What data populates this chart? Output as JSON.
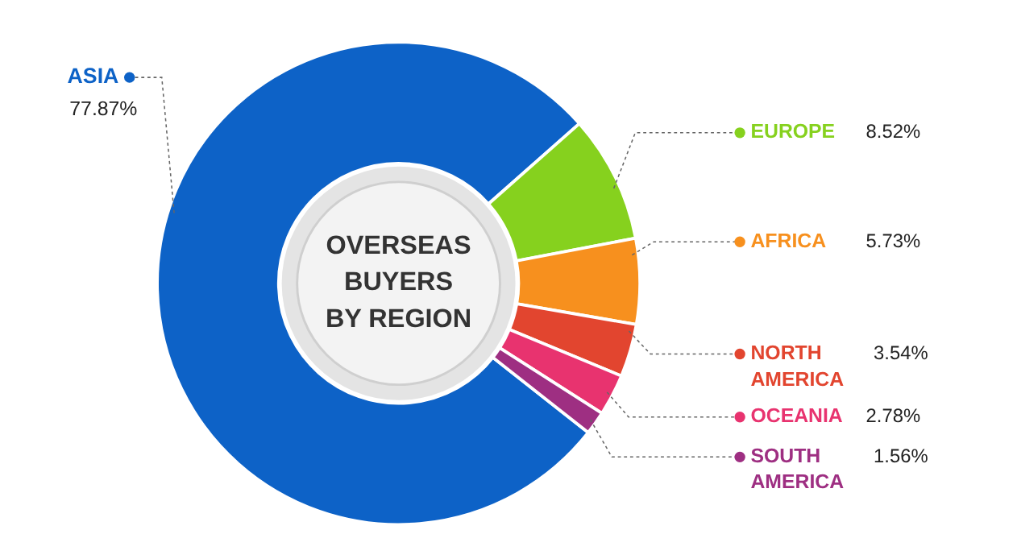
{
  "chart_data": {
    "type": "donut",
    "title": "OVERSEAS BUYERS BY REGION",
    "categories": [
      "ASIA",
      "EUROPE",
      "AFRICA",
      "NORTH AMERICA",
      "OCEANIA",
      "SOUTH AMERICA"
    ],
    "values": [
      77.87,
      8.52,
      5.73,
      3.54,
      2.78,
      1.56
    ],
    "colors": [
      "#0d62c7",
      "#86d11e",
      "#f7901e",
      "#e2452f",
      "#e8336f",
      "#9e2f82"
    ],
    "value_labels": [
      "77.87%",
      "8.52%",
      "5.73%",
      "3.54%",
      "2.78%",
      "1.56%"
    ],
    "legend": "right"
  }
}
